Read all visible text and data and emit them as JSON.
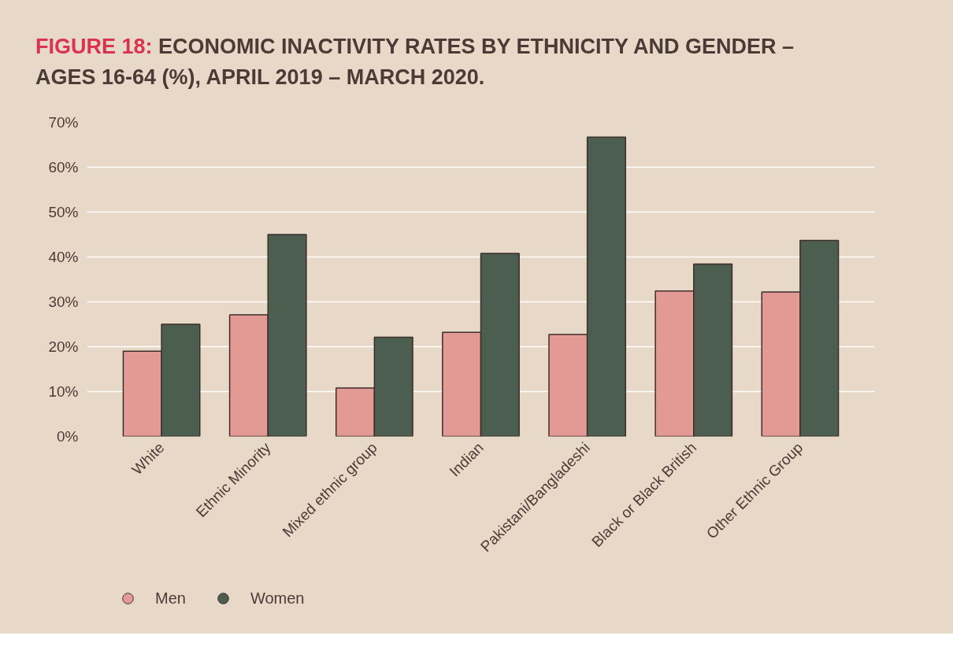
{
  "chart_data": {
    "type": "bar",
    "title": "FIGURE 18: ECONOMIC INACTIVITY RATES BY ETHNICITY AND GENDER – AGES 16-64 (%), APRIL 2019 – MARCH 2020.",
    "categories": [
      "White",
      "Ethnic Minority",
      "Mixed ethnic group",
      "Indian",
      "Pakistani/Bangladeshi",
      "Black or Black British",
      "Other Ethnic Group"
    ],
    "series": [
      {
        "name": "Men",
        "color": "#e49a94",
        "values": [
          19.0,
          27.1,
          10.8,
          23.2,
          22.7,
          32.4,
          32.2
        ]
      },
      {
        "name": "Women",
        "color": "#4b5e4f",
        "values": [
          25.0,
          45.0,
          22.1,
          40.8,
          66.7,
          38.4,
          43.7
        ]
      }
    ],
    "ylim": [
      0,
      70
    ],
    "yticks": [
      {
        "value": 0,
        "label": "0%"
      },
      {
        "value": 10,
        "label": "10%"
      },
      {
        "value": 20,
        "label": "20%"
      },
      {
        "value": 30,
        "label": "30%"
      },
      {
        "value": 40,
        "label": "40%"
      },
      {
        "value": 50,
        "label": "50%"
      },
      {
        "value": 60,
        "label": "60%"
      },
      {
        "value": 70,
        "label": "70%"
      }
    ],
    "grid": "y",
    "legend": "bottom left"
  }
}
